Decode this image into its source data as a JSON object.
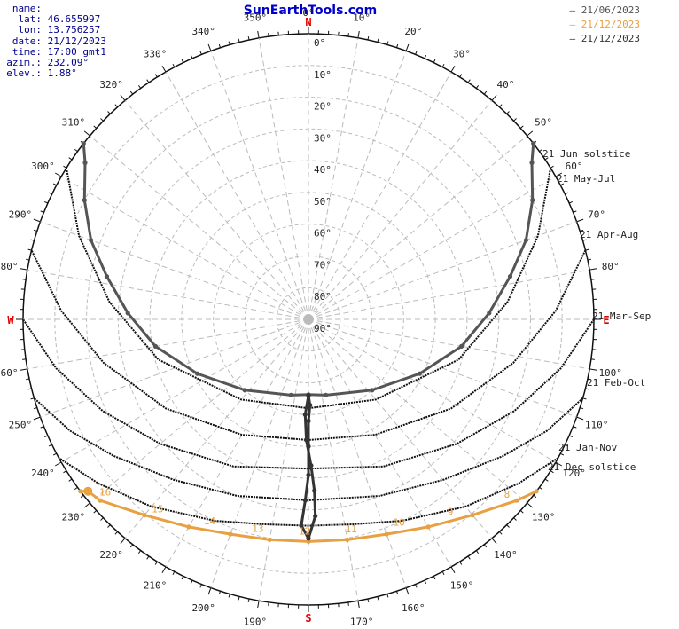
{
  "title": "SunEarthTools.com",
  "info": [
    {
      "key": "name:",
      "value": ""
    },
    {
      "key": "lat:",
      "value": "46.655997"
    },
    {
      "key": "lon:",
      "value": "13.756257"
    },
    {
      "key": "date:",
      "value": "21/12/2023"
    },
    {
      "key": "time:",
      "value": "17:00 gmt1"
    },
    {
      "key": "azim.:",
      "value": "232.09°"
    },
    {
      "key": "elev.:",
      "value": "1.88°"
    }
  ],
  "legend": [
    {
      "label": "– 21/06/2023",
      "color": "#555555"
    },
    {
      "label": "– 21/12/2023",
      "color": "#e8a040"
    },
    {
      "label": "– 21/12/2023",
      "color": "#333333"
    }
  ],
  "colors": {
    "summer": "#555555",
    "winter": "#e8a040",
    "analemma": "#333333",
    "grid": "#bbbbbb",
    "cardinal": "#e00000"
  },
  "cardinals": {
    "N": "N",
    "E": "E",
    "S": "S",
    "W": "W"
  },
  "chart_data": {
    "type": "polar-sunpath",
    "azimuth_ticks": [
      "0°",
      "10°",
      "20°",
      "30°",
      "40°",
      "50°",
      "60°",
      "70°",
      "80°",
      "100°",
      "110°",
      "120°",
      "130°",
      "140°",
      "150°",
      "160°",
      "170°",
      "190°",
      "200°",
      "210°",
      "220°",
      "230°",
      "240°",
      "250°",
      "260°",
      "280°",
      "290°",
      "300°",
      "310°",
      "320°",
      "330°",
      "340°",
      "350°"
    ],
    "elevation_ticks": [
      "0°",
      "10°",
      "20°",
      "30°",
      "40°",
      "50°",
      "60°",
      "70°",
      "80°",
      "90°"
    ],
    "day_labels": [
      "21 Jun  solstice",
      "21 May-Jul",
      "21 Apr-Aug",
      "21 Mar-Sep",
      "21 Feb-Oct",
      "21 Jan-Nov",
      "21 Dec  solstice"
    ],
    "series": [
      {
        "name": "21/06/2023",
        "points": [
          [
            52,
            0
          ],
          [
            55,
            4
          ],
          [
            62,
            10
          ],
          [
            70,
            17
          ],
          [
            78,
            25
          ],
          [
            88,
            33
          ],
          [
            100,
            41
          ],
          [
            116,
            51
          ],
          [
            138,
            60
          ],
          [
            167,
            65.5
          ],
          [
            180,
            66.3
          ],
          [
            193,
            65.5
          ],
          [
            222,
            60
          ],
          [
            244,
            51
          ],
          [
            260,
            41
          ],
          [
            272,
            33
          ],
          [
            282,
            25
          ],
          [
            290,
            17
          ],
          [
            298,
            10
          ],
          [
            305,
            4
          ],
          [
            308,
            0
          ]
        ]
      },
      {
        "name": "21/12/2023",
        "points": [
          [
            127,
            0
          ],
          [
            131,
            3
          ],
          [
            140,
            9.5
          ],
          [
            150,
            14.5
          ],
          [
            160,
            18
          ],
          [
            170,
            19.5
          ],
          [
            180,
            20
          ],
          [
            190,
            19.5
          ],
          [
            200,
            18
          ],
          [
            210,
            14.5
          ],
          [
            220,
            9.5
          ],
          [
            229,
            3
          ],
          [
            232.09,
            1.88
          ],
          [
            233,
            0
          ]
        ]
      },
      {
        "name": "21/12/2023",
        "type": "analemma",
        "points": [
          [
            180,
            66
          ],
          [
            182,
            60
          ],
          [
            181,
            52
          ],
          [
            179,
            44
          ],
          [
            178,
            36
          ],
          [
            178,
            28
          ],
          [
            180,
            21
          ],
          [
            182,
            25
          ],
          [
            181,
            33
          ],
          [
            180,
            41
          ],
          [
            180,
            50
          ],
          [
            180,
            58
          ],
          [
            179,
            63
          ],
          [
            180,
            66
          ]
        ]
      }
    ],
    "day_paths": [
      {
        "name": "21 May-Jul",
        "points": [
          [
            58,
            0
          ],
          [
            70,
            13
          ],
          [
            85,
            27
          ],
          [
            105,
            41
          ],
          [
            140,
            57
          ],
          [
            180,
            62
          ],
          [
            220,
            57
          ],
          [
            255,
            41
          ],
          [
            275,
            27
          ],
          [
            290,
            13
          ],
          [
            302,
            0
          ]
        ]
      },
      {
        "name": "21 Apr-Aug",
        "points": [
          [
            76,
            0
          ],
          [
            88,
            12
          ],
          [
            102,
            24
          ],
          [
            122,
            37
          ],
          [
            150,
            48
          ],
          [
            180,
            52
          ],
          [
            210,
            48
          ],
          [
            238,
            37
          ],
          [
            258,
            24
          ],
          [
            272,
            12
          ],
          [
            284,
            0
          ]
        ]
      },
      {
        "name": "21 Mar-Sep",
        "points": [
          [
            90,
            0
          ],
          [
            101,
            9
          ],
          [
            114,
            19
          ],
          [
            130,
            29
          ],
          [
            153,
            38
          ],
          [
            180,
            43
          ],
          [
            207,
            38
          ],
          [
            230,
            29
          ],
          [
            246,
            19
          ],
          [
            259,
            9
          ],
          [
            270,
            0
          ]
        ]
      },
      {
        "name": "21 Feb-Oct",
        "points": [
          [
            106,
            0
          ],
          [
            115,
            7
          ],
          [
            125,
            15
          ],
          [
            140,
            24
          ],
          [
            158,
            30
          ],
          [
            180,
            33
          ],
          [
            202,
            30
          ],
          [
            220,
            24
          ],
          [
            235,
            15
          ],
          [
            245,
            7
          ],
          [
            254,
            0
          ]
        ]
      },
      {
        "name": "21 Jan-Nov",
        "points": [
          [
            119,
            0
          ],
          [
            128,
            6
          ],
          [
            140,
            13
          ],
          [
            155,
            20
          ],
          [
            168,
            24
          ],
          [
            180,
            25
          ],
          [
            192,
            24
          ],
          [
            205,
            20
          ],
          [
            220,
            13
          ],
          [
            232,
            6
          ],
          [
            241,
            0
          ]
        ]
      }
    ],
    "hour_labels": [
      "16",
      "15",
      "14",
      "13",
      "12",
      "11",
      "10",
      "9",
      "8"
    ],
    "sun_position": {
      "azimuth": 232.09,
      "elevation": 1.88
    },
    "rlim": [
      0,
      90
    ]
  }
}
